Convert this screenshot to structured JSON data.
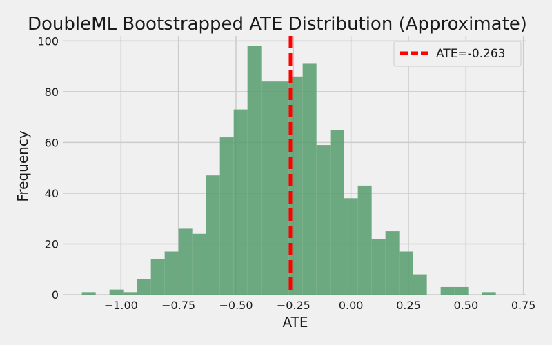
{
  "chart_data": {
    "type": "bar",
    "title": "DoubleML Bootstrapped ATE Distribution (Approximate)",
    "xlabel": "ATE",
    "ylabel": "Frequency",
    "xlim": [
      -1.25,
      0.76
    ],
    "ylim": [
      0,
      102
    ],
    "x_ticks": [
      -1.0,
      -0.75,
      -0.5,
      -0.25,
      0.0,
      0.25,
      0.5,
      0.75
    ],
    "x_tick_labels": [
      "−1.00",
      "−0.75",
      "−0.50",
      "−0.25",
      "0.00",
      "0.25",
      "0.50",
      "0.75"
    ],
    "y_ticks": [
      0,
      20,
      40,
      60,
      80,
      100
    ],
    "y_tick_labels": [
      "0",
      "20",
      "40",
      "60",
      "80",
      "100"
    ],
    "bin_edges": [
      -1.17,
      -1.11,
      -1.05,
      -0.99,
      -0.93,
      -0.87,
      -0.81,
      -0.75,
      -0.69,
      -0.63,
      -0.57,
      -0.51,
      -0.45,
      -0.39,
      -0.33,
      -0.27,
      -0.21,
      -0.15,
      -0.09,
      -0.03,
      0.03,
      0.09,
      0.15,
      0.21,
      0.27,
      0.33,
      0.39,
      0.45,
      0.51,
      0.57,
      0.63,
      0.69
    ],
    "counts": [
      1,
      0,
      2,
      1,
      6,
      14,
      17,
      26,
      24,
      47,
      62,
      73,
      98,
      84,
      84,
      86,
      91,
      59,
      65,
      38,
      43,
      22,
      25,
      17,
      8,
      0,
      3,
      3,
      0,
      1,
      0
    ],
    "bar_color": "#5a9e6f",
    "ate_line": {
      "x": -0.263,
      "color": "#ff0000",
      "label": "ATE=-0.263"
    },
    "grid": true,
    "legend_position": "top-right"
  }
}
